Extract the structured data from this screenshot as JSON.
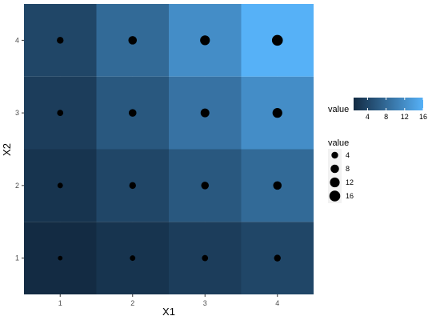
{
  "chart_data": {
    "type": "heatmap",
    "title": "",
    "xlabel": "X1",
    "ylabel": "X2",
    "x_categories": [
      "1",
      "2",
      "3",
      "4"
    ],
    "y_categories": [
      "1",
      "2",
      "3",
      "4"
    ],
    "xlim": [
      0.5,
      4.5
    ],
    "ylim": [
      0.5,
      4.5
    ],
    "grid": true,
    "cells": [
      {
        "x": 1,
        "y": 1,
        "value": 1
      },
      {
        "x": 2,
        "y": 1,
        "value": 2
      },
      {
        "x": 3,
        "y": 1,
        "value": 3
      },
      {
        "x": 4,
        "y": 1,
        "value": 4
      },
      {
        "x": 1,
        "y": 2,
        "value": 2
      },
      {
        "x": 2,
        "y": 2,
        "value": 4
      },
      {
        "x": 3,
        "y": 2,
        "value": 6
      },
      {
        "x": 4,
        "y": 2,
        "value": 8
      },
      {
        "x": 1,
        "y": 3,
        "value": 3
      },
      {
        "x": 2,
        "y": 3,
        "value": 6
      },
      {
        "x": 3,
        "y": 3,
        "value": 9
      },
      {
        "x": 4,
        "y": 3,
        "value": 12
      },
      {
        "x": 1,
        "y": 4,
        "value": 4
      },
      {
        "x": 2,
        "y": 4,
        "value": 8
      },
      {
        "x": 3,
        "y": 4,
        "value": 12
      },
      {
        "x": 4,
        "y": 4,
        "value": 16
      }
    ],
    "fill_scale": {
      "title": "value",
      "low_color": "#132B43",
      "high_color": "#56B1F7",
      "domain": [
        1,
        16
      ],
      "breaks": [
        4,
        8,
        12,
        16
      ]
    },
    "size_legend": {
      "title": "value",
      "breaks": [
        4,
        8,
        12,
        16
      ]
    },
    "legend_position": "right",
    "panel_background": "#EBEBEB",
    "grid_color": "#FFFFFF",
    "point_color": "#000000"
  }
}
